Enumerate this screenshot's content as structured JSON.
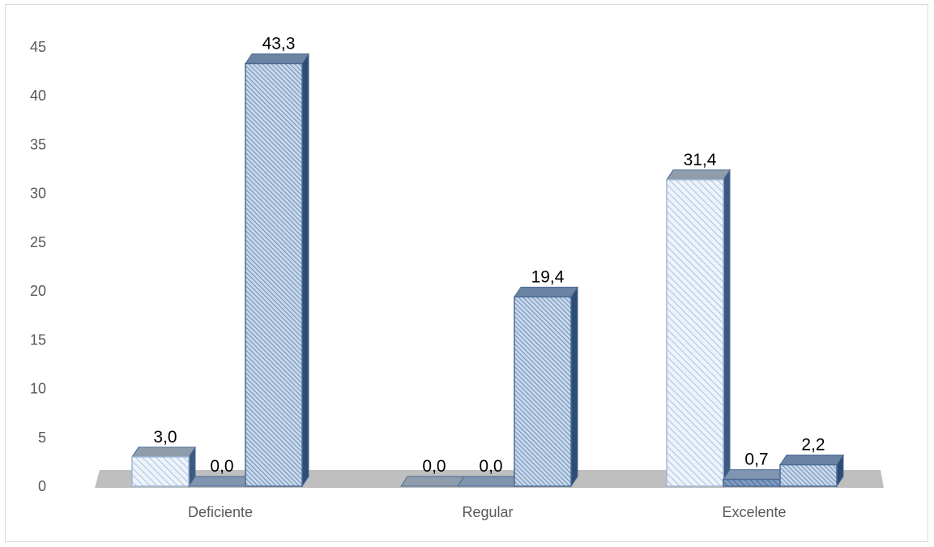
{
  "chart_data": {
    "type": "bar",
    "title": "",
    "xlabel": "",
    "ylabel": "",
    "ylim": [
      0,
      45
    ],
    "yticks": [
      "0",
      "5",
      "10",
      "15",
      "20",
      "25",
      "30",
      "35",
      "40",
      "45"
    ],
    "categories": [
      "Deficiente",
      "Regular",
      "Excelente"
    ],
    "series": [
      {
        "values": [
          3.0,
          0.0,
          31.4
        ],
        "labels": [
          "3,0",
          "0,0",
          "31,4"
        ],
        "color": "#dbe6f4",
        "side_color": "#3a5a80",
        "top_color": "#8f9cab"
      },
      {
        "values": [
          0.0,
          0.0,
          0.7
        ],
        "labels": [
          "0,0",
          "0,0",
          "0,7"
        ],
        "color": "#6f8fb8",
        "side_color": "#2f4f78",
        "top_color": "#7f95b0"
      },
      {
        "values": [
          43.3,
          19.4,
          2.2
        ],
        "labels": [
          "43,3",
          "19,4",
          "2,2"
        ],
        "color": "#a9c1e0",
        "side_color": "#2e4d73",
        "top_color": "#6b84a3"
      }
    ],
    "grid": false,
    "legend": "none",
    "style": "3d-column"
  }
}
